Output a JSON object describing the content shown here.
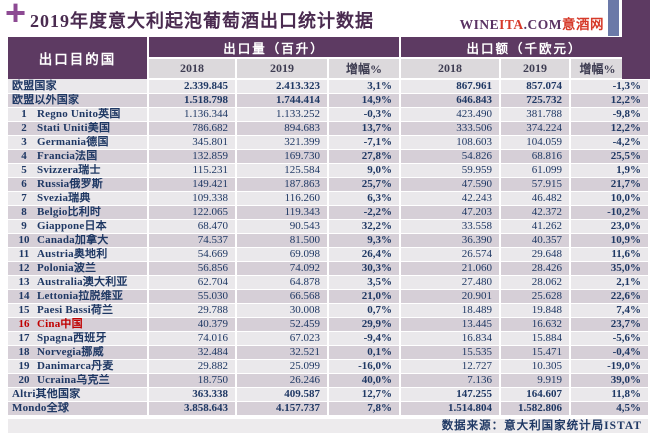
{
  "title": "2019年度意大利起泡葡萄酒出口统计数据",
  "logo": {
    "wine": "WINE",
    "ita": "ITA",
    "com": ".COM",
    "cn": "意酒网"
  },
  "footer": {
    "source": "数据来源：意大利国家统计局ISTAT"
  },
  "colors": {
    "header_purple": "#5d3a62",
    "corner_blue": "#6b79a8",
    "title_purple": "#4a2b50",
    "plus_purple": "#8d4a93",
    "text_navy": "#1f3864",
    "highlight_red": "#c00000",
    "row_light": "#eae8eb",
    "row_dark": "#d6cfd7",
    "subheader_grey": "#dcd9dc"
  },
  "chart_data": {
    "type": "table",
    "title": "2019年度意大利起泡葡萄酒出口统计数据",
    "source": "数据来源：意大利国家统计局ISTAT",
    "header": {
      "destination": "出口目的国",
      "groups": [
        {
          "label": "出口量（百升）",
          "sub": [
            "2018",
            "2019",
            "增幅%"
          ]
        },
        {
          "label": "出口额（千欧元）",
          "sub": [
            "2018",
            "2019",
            "增幅%"
          ]
        }
      ]
    },
    "rows": [
      {
        "rank": "",
        "name": "欧盟国家",
        "bold": true,
        "red": false,
        "vol_2018": "2.339.845",
        "vol_2019": "2.413.323",
        "vol_growth": "3,1%",
        "val_2018": "867.961",
        "val_2019": "857.074",
        "val_growth": "-1,3%"
      },
      {
        "rank": "",
        "name": "欧盟以外国家",
        "bold": true,
        "red": false,
        "vol_2018": "1.518.798",
        "vol_2019": "1.744.414",
        "vol_growth": "14,9%",
        "val_2018": "646.843",
        "val_2019": "725.732",
        "val_growth": "12,2%"
      },
      {
        "rank": "1",
        "name": "Regno Unito英国",
        "bold": false,
        "red": false,
        "vol_2018": "1.136.344",
        "vol_2019": "1.133.252",
        "vol_growth": "-0,3%",
        "val_2018": "423.490",
        "val_2019": "381.788",
        "val_growth": "-9,8%"
      },
      {
        "rank": "2",
        "name": "Stati Uniti美国",
        "bold": false,
        "red": false,
        "vol_2018": "786.682",
        "vol_2019": "894.683",
        "vol_growth": "13,7%",
        "val_2018": "333.506",
        "val_2019": "374.224",
        "val_growth": "12,2%"
      },
      {
        "rank": "3",
        "name": "Germania德国",
        "bold": false,
        "red": false,
        "vol_2018": "345.801",
        "vol_2019": "321.399",
        "vol_growth": "-7,1%",
        "val_2018": "108.603",
        "val_2019": "104.059",
        "val_growth": "-4,2%"
      },
      {
        "rank": "4",
        "name": "Francia法国",
        "bold": false,
        "red": false,
        "vol_2018": "132.859",
        "vol_2019": "169.730",
        "vol_growth": "27,8%",
        "val_2018": "54.826",
        "val_2019": "68.816",
        "val_growth": "25,5%"
      },
      {
        "rank": "5",
        "name": "Svizzera瑞士",
        "bold": false,
        "red": false,
        "vol_2018": "115.231",
        "vol_2019": "125.584",
        "vol_growth": "9,0%",
        "val_2018": "59.959",
        "val_2019": "61.099",
        "val_growth": "1,9%"
      },
      {
        "rank": "6",
        "name": "Russia俄罗斯",
        "bold": false,
        "red": false,
        "vol_2018": "149.421",
        "vol_2019": "187.863",
        "vol_growth": "25,7%",
        "val_2018": "47.590",
        "val_2019": "57.915",
        "val_growth": "21,7%"
      },
      {
        "rank": "7",
        "name": "Svezia瑞典",
        "bold": false,
        "red": false,
        "vol_2018": "109.338",
        "vol_2019": "116.260",
        "vol_growth": "6,3%",
        "val_2018": "42.243",
        "val_2019": "46.482",
        "val_growth": "10,0%"
      },
      {
        "rank": "8",
        "name": "Belgio比利时",
        "bold": false,
        "red": false,
        "vol_2018": "122.065",
        "vol_2019": "119.343",
        "vol_growth": "-2,2%",
        "val_2018": "47.203",
        "val_2019": "42.372",
        "val_growth": "-10,2%"
      },
      {
        "rank": "9",
        "name": "Giappone日本",
        "bold": false,
        "red": false,
        "vol_2018": "68.470",
        "vol_2019": "90.543",
        "vol_growth": "32,2%",
        "val_2018": "33.558",
        "val_2019": "41.262",
        "val_growth": "23,0%"
      },
      {
        "rank": "10",
        "name": "Canada加拿大",
        "bold": false,
        "red": false,
        "vol_2018": "74.537",
        "vol_2019": "81.500",
        "vol_growth": "9,3%",
        "val_2018": "36.390",
        "val_2019": "40.357",
        "val_growth": "10,9%"
      },
      {
        "rank": "11",
        "name": "Austria奥地利",
        "bold": false,
        "red": false,
        "vol_2018": "54.669",
        "vol_2019": "69.098",
        "vol_growth": "26,4%",
        "val_2018": "26.574",
        "val_2019": "29.648",
        "val_growth": "11,6%"
      },
      {
        "rank": "12",
        "name": "Polonia波兰",
        "bold": false,
        "red": false,
        "vol_2018": "56.856",
        "vol_2019": "74.092",
        "vol_growth": "30,3%",
        "val_2018": "21.060",
        "val_2019": "28.426",
        "val_growth": "35,0%"
      },
      {
        "rank": "13",
        "name": "Australia澳大利亚",
        "bold": false,
        "red": false,
        "vol_2018": "62.704",
        "vol_2019": "64.878",
        "vol_growth": "3,5%",
        "val_2018": "27.480",
        "val_2019": "28.062",
        "val_growth": "2,1%"
      },
      {
        "rank": "14",
        "name": "Lettonia拉脱维亚",
        "bold": false,
        "red": false,
        "vol_2018": "55.030",
        "vol_2019": "66.568",
        "vol_growth": "21,0%",
        "val_2018": "20.901",
        "val_2019": "25.628",
        "val_growth": "22,6%"
      },
      {
        "rank": "15",
        "name": "Paesi Bassi荷兰",
        "bold": false,
        "red": false,
        "vol_2018": "29.788",
        "vol_2019": "30.008",
        "vol_growth": "0,7%",
        "val_2018": "18.489",
        "val_2019": "19.848",
        "val_growth": "7,4%"
      },
      {
        "rank": "16",
        "name": "Cina中国",
        "bold": false,
        "red": true,
        "vol_2018": "40.379",
        "vol_2019": "52.459",
        "vol_growth": "29,9%",
        "val_2018": "13.445",
        "val_2019": "16.632",
        "val_growth": "23,7%"
      },
      {
        "rank": "17",
        "name": "Spagna西班牙",
        "bold": false,
        "red": false,
        "vol_2018": "74.016",
        "vol_2019": "67.023",
        "vol_growth": "-9,4%",
        "val_2018": "16.834",
        "val_2019": "15.884",
        "val_growth": "-5,6%"
      },
      {
        "rank": "18",
        "name": "Norvegia挪威",
        "bold": false,
        "red": false,
        "vol_2018": "32.484",
        "vol_2019": "32.521",
        "vol_growth": "0,1%",
        "val_2018": "15.535",
        "val_2019": "15.471",
        "val_growth": "-0,4%"
      },
      {
        "rank": "19",
        "name": "Danimarca丹麦",
        "bold": false,
        "red": false,
        "vol_2018": "29.882",
        "vol_2019": "25.099",
        "vol_growth": "-16,0%",
        "val_2018": "12.727",
        "val_2019": "10.305",
        "val_growth": "-19,0%"
      },
      {
        "rank": "20",
        "name": "Ucraina乌克兰",
        "bold": false,
        "red": false,
        "vol_2018": "18.750",
        "vol_2019": "26.246",
        "vol_growth": "40,0%",
        "val_2018": "7.136",
        "val_2019": "9.919",
        "val_growth": "39,0%"
      },
      {
        "rank": "",
        "name": "Altri其他国家",
        "bold": true,
        "red": false,
        "vol_2018": "363.338",
        "vol_2019": "409.587",
        "vol_growth": "12,7%",
        "val_2018": "147.255",
        "val_2019": "164.607",
        "val_growth": "11,8%"
      },
      {
        "rank": "",
        "name": "Mondo全球",
        "bold": true,
        "red": false,
        "vol_2018": "3.858.643",
        "vol_2019": "4.157.737",
        "vol_growth": "7,8%",
        "val_2018": "1.514.804",
        "val_2019": "1.582.806",
        "val_growth": "4,5%"
      }
    ]
  }
}
